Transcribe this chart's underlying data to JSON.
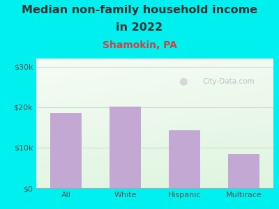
{
  "title_line1": "Median non-family household income",
  "title_line2": "in 2022",
  "subtitle": "Shamokin, PA",
  "categories": [
    "All",
    "White",
    "Hispanic",
    "Multirace"
  ],
  "values": [
    18500,
    20200,
    14200,
    8500
  ],
  "bar_color": "#c4a8d4",
  "background_outer": "#00efef",
  "title_color": "#333333",
  "subtitle_color": "#cc4444",
  "tick_label_color": "#555555",
  "ylim": [
    0,
    32000
  ],
  "yticks": [
    0,
    10000,
    20000,
    30000
  ],
  "ytick_labels": [
    "$0",
    "$10k",
    "$20k",
    "$30k"
  ],
  "watermark": "City-Data.com",
  "title_fontsize": 11.5,
  "subtitle_fontsize": 10,
  "tick_fontsize": 8
}
